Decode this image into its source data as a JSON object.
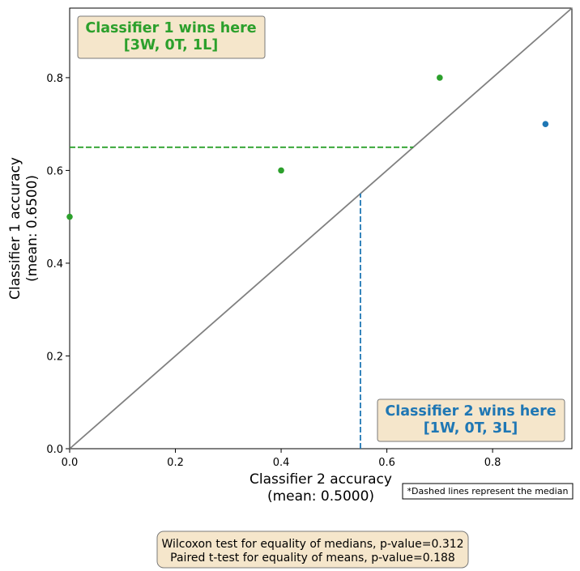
{
  "chart_data": {
    "type": "scatter",
    "xlabel": [
      "Classifier 2 accuracy",
      "(mean: 0.5000)"
    ],
    "ylabel": [
      "Classifier 1 accuracy",
      "(mean: 0.6500)"
    ],
    "xlim": [
      0,
      0.95
    ],
    "ylim": [
      0,
      0.95
    ],
    "xticks": [
      0.0,
      0.2,
      0.4,
      0.6,
      0.8
    ],
    "yticks": [
      0.0,
      0.2,
      0.4,
      0.6,
      0.8
    ],
    "tick_labels": [
      "0.0",
      "0.2",
      "0.4",
      "0.6",
      "0.8"
    ],
    "points": [
      {
        "x": 0.0,
        "y": 0.5,
        "winner": "classifier1"
      },
      {
        "x": 0.4,
        "y": 0.6,
        "winner": "classifier1"
      },
      {
        "x": 0.7,
        "y": 0.8,
        "winner": "classifier1"
      },
      {
        "x": 0.9,
        "y": 0.7,
        "winner": "classifier2"
      }
    ],
    "median_classifier1": 0.65,
    "median_classifier2": 0.55,
    "diagonal": true,
    "grid": false,
    "colors": {
      "classifier1": "#2ca02c",
      "classifier2": "#1f77b4",
      "diagonal": "#808080",
      "box_fill": "#f5e6cb",
      "box_edge": "#7a7a7a"
    },
    "annotations": {
      "classifier1_box": [
        "Classifier 1 wins here",
        "[3W, 0T, 1L]"
      ],
      "classifier2_box": [
        "Classifier 2 wins here",
        "[1W, 0T, 3L]"
      ],
      "median_note": "*Dashed lines represent the median",
      "stats": [
        "Wilcoxon test for equality of medians, p-value=0.312",
        "Paired t-test for equality of means, p-value=0.188"
      ]
    }
  }
}
